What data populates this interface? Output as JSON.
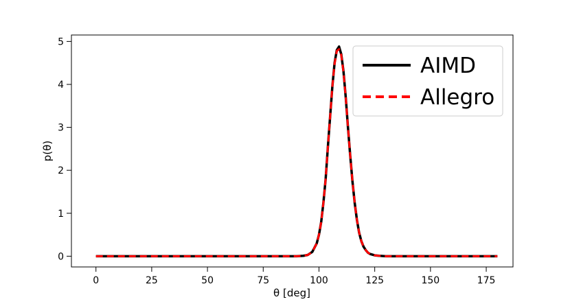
{
  "chart_data": {
    "type": "line",
    "title": "",
    "xlabel": "θ [deg]",
    "ylabel": "p(θ)",
    "xlim": [
      -11,
      187
    ],
    "ylim": [
      -0.25,
      5.15
    ],
    "xticks": [
      0,
      25,
      50,
      75,
      100,
      125,
      150,
      175
    ],
    "yticks": [
      0,
      1,
      2,
      3,
      4,
      5
    ],
    "grid": false,
    "legend": {
      "position": "top-right"
    },
    "x": [
      0,
      10,
      20,
      30,
      40,
      50,
      60,
      70,
      80,
      90,
      93,
      95,
      97,
      99,
      100,
      101,
      102,
      103,
      104,
      105,
      106,
      107,
      108,
      109,
      110,
      111,
      112,
      113,
      114,
      115,
      116,
      117,
      118,
      119,
      120,
      121,
      122,
      123,
      125,
      127,
      130,
      135,
      140,
      150,
      160,
      170,
      180
    ],
    "series": [
      {
        "name": "AIMD",
        "color": "#000000",
        "style": "solid",
        "values": [
          0,
          0,
          0,
          0,
          0,
          0,
          0,
          0,
          0,
          0,
          0.01,
          0.03,
          0.1,
          0.3,
          0.5,
          0.8,
          1.25,
          1.8,
          2.55,
          3.25,
          3.95,
          4.5,
          4.8,
          4.88,
          4.7,
          4.3,
          3.7,
          3.0,
          2.35,
          1.75,
          1.25,
          0.85,
          0.55,
          0.35,
          0.22,
          0.14,
          0.08,
          0.05,
          0.02,
          0.01,
          0,
          0,
          0,
          0,
          0,
          0,
          0
        ]
      },
      {
        "name": "Allegro",
        "color": "#ff0000",
        "style": "dashed",
        "values": [
          0,
          0,
          0,
          0,
          0,
          0,
          0,
          0,
          0,
          0,
          0.01,
          0.03,
          0.1,
          0.3,
          0.5,
          0.8,
          1.25,
          1.8,
          2.55,
          3.25,
          3.95,
          4.48,
          4.78,
          4.82,
          4.68,
          4.28,
          3.7,
          3.0,
          2.35,
          1.75,
          1.25,
          0.85,
          0.55,
          0.35,
          0.22,
          0.14,
          0.08,
          0.05,
          0.02,
          0.01,
          0,
          0,
          0,
          0,
          0,
          0,
          0
        ]
      }
    ]
  }
}
